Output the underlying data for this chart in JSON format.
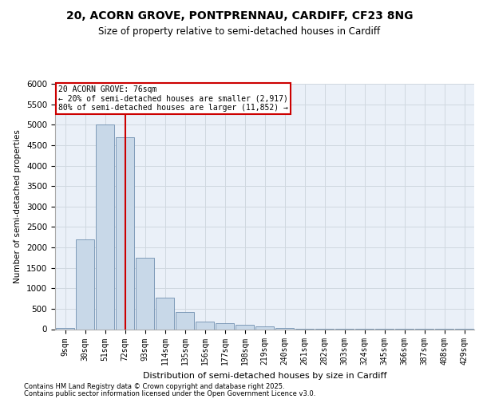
{
  "title1": "20, ACORN GROVE, PONTPRENNAU, CARDIFF, CF23 8NG",
  "title2": "Size of property relative to semi-detached houses in Cardiff",
  "xlabel": "Distribution of semi-detached houses by size in Cardiff",
  "ylabel": "Number of semi-detached properties",
  "categories": [
    "9sqm",
    "30sqm",
    "51sqm",
    "72sqm",
    "93sqm",
    "114sqm",
    "135sqm",
    "156sqm",
    "177sqm",
    "198sqm",
    "219sqm",
    "240sqm",
    "261sqm",
    "282sqm",
    "303sqm",
    "324sqm",
    "345sqm",
    "366sqm",
    "387sqm",
    "408sqm",
    "429sqm"
  ],
  "values": [
    30,
    2200,
    5000,
    4700,
    1750,
    780,
    420,
    195,
    145,
    110,
    60,
    30,
    15,
    8,
    5,
    3,
    2,
    2,
    1,
    1,
    1
  ],
  "bar_color": "#c8d8e8",
  "bar_edge_color": "#7090b0",
  "vline_bin_index": 3,
  "vline_color": "#cc0000",
  "property_label": "20 ACORN GROVE: 76sqm",
  "annotation_line1": "← 20% of semi-detached houses are smaller (2,917)",
  "annotation_line2": "80% of semi-detached houses are larger (11,852) →",
  "annotation_box_bg": "#ffffff",
  "annotation_box_edge": "#cc0000",
  "ylim_max": 6000,
  "yticks": [
    0,
    500,
    1000,
    1500,
    2000,
    2500,
    3000,
    3500,
    4000,
    4500,
    5000,
    5500,
    6000
  ],
  "grid_color": "#d0d8e0",
  "bg_color": "#eaf0f8",
  "footnote1": "Contains HM Land Registry data © Crown copyright and database right 2025.",
  "footnote2": "Contains public sector information licensed under the Open Government Licence v3.0."
}
